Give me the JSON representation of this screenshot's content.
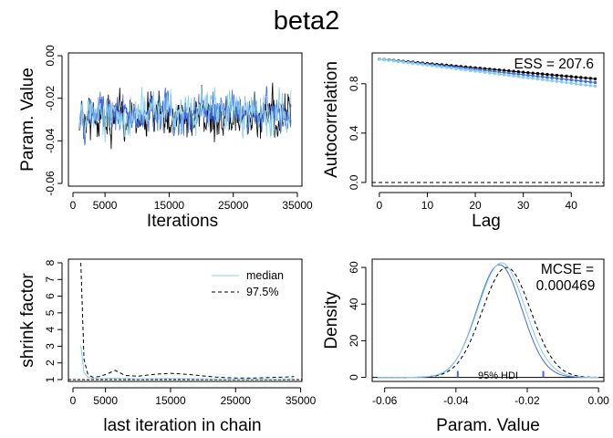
{
  "figure": {
    "title": "beta2"
  },
  "chart_data": [
    {
      "type": "line",
      "panel": "trace",
      "xlabel": "Iterations",
      "ylabel": "Param. Value",
      "xlim": [
        0,
        35000
      ],
      "ylim": [
        -0.06,
        0.0
      ],
      "xticks": [
        0,
        5000,
        15000,
        25000,
        35000
      ],
      "yticks": [
        -0.06,
        -0.04,
        -0.02,
        0.0
      ],
      "xtick_labels": [
        "0",
        "5000",
        "15000",
        "25000",
        "35000"
      ],
      "ytick_labels": [
        "-0.06",
        "-0.04",
        "-0.02",
        "0.00"
      ],
      "series": [
        {
          "color": "#000000",
          "x": [
            1000,
            34000
          ],
          "approx_mean": -0.029,
          "approx_sd": 0.0075
        },
        {
          "color": "#4169e1",
          "x": [
            1000,
            34000
          ],
          "approx_mean": -0.028,
          "approx_sd": 0.0065
        },
        {
          "color": "#87ceeb",
          "x": [
            1000,
            34000
          ],
          "approx_mean": -0.027,
          "approx_sd": 0.007
        }
      ]
    },
    {
      "type": "line",
      "panel": "autocorrelation",
      "xlabel": "Lag",
      "ylabel": "Autocorrelation",
      "annotation": "ESS = 207.6",
      "xlim": [
        0,
        45
      ],
      "ylim": [
        0,
        1.0
      ],
      "xticks": [
        0,
        10,
        20,
        30,
        40
      ],
      "yticks": [
        0.0,
        0.4,
        0.8
      ],
      "xtick_labels": [
        "0",
        "10",
        "20",
        "30",
        "40"
      ],
      "ytick_labels": [
        "0.0",
        "0.4",
        "0.8"
      ],
      "series": [
        {
          "color": "#000000",
          "start": 1.0,
          "end_at_lag_45": 0.84
        },
        {
          "color": "#4169e1",
          "start": 1.0,
          "end_at_lag_45": 0.81
        },
        {
          "color": "#87ceeb",
          "start": 1.0,
          "end_at_lag_45": 0.78
        }
      ]
    },
    {
      "type": "line",
      "panel": "shrink",
      "xlabel": "last iteration in chain",
      "ylabel": "shrink factor",
      "xlim": [
        0,
        34500
      ],
      "ylim": [
        1,
        8
      ],
      "xticks": [
        0,
        5000,
        15000,
        25000,
        35000
      ],
      "yticks": [
        1,
        2,
        3,
        4,
        5,
        6,
        7,
        8
      ],
      "xtick_labels": [
        "0",
        "5000",
        "15000",
        "25000",
        "35000"
      ],
      "ytick_labels": [
        "1",
        "2",
        "3",
        "4",
        "5",
        "6",
        "7",
        "8"
      ],
      "legend": [
        {
          "label": "median",
          "color": "#87ceeb",
          "dash": "solid"
        },
        {
          "label": "97.5%",
          "color": "#000000",
          "dash": "dashed"
        }
      ],
      "series": [
        {
          "name": "median",
          "color": "#87ceeb",
          "x": [
            1200,
            1700,
            2300,
            3000,
            4000,
            6000,
            8000,
            10000,
            15000,
            20000,
            25000,
            30000,
            34000
          ],
          "y": [
            3.05,
            1.4,
            1.15,
            1.08,
            1.05,
            1.08,
            1.06,
            1.04,
            1.06,
            1.04,
            1.03,
            1.03,
            1.04
          ]
        },
        {
          "name": "97.5%",
          "color": "#000000",
          "x": [
            1200,
            1700,
            2300,
            3000,
            4000,
            5000,
            6500,
            8000,
            10000,
            12000,
            15000,
            18000,
            20000,
            22000,
            25000,
            28000,
            30000,
            32000,
            34000
          ],
          "y": [
            8.0,
            2.2,
            1.3,
            1.15,
            1.18,
            1.3,
            1.55,
            1.25,
            1.2,
            1.3,
            1.38,
            1.3,
            1.22,
            1.15,
            1.1,
            1.1,
            1.12,
            1.14,
            1.18
          ]
        }
      ]
    },
    {
      "type": "line",
      "panel": "density",
      "xlabel": "Param. Value",
      "ylabel": "Density",
      "annotation_lines": [
        "MCSE =",
        "0.000469"
      ],
      "hdi_label": "95% HDI",
      "hdi": [
        -0.0395,
        -0.0155
      ],
      "xlim": [
        -0.06,
        0.0
      ],
      "ylim": [
        0,
        62
      ],
      "xticks": [
        -0.06,
        -0.04,
        -0.02,
        0.0
      ],
      "yticks": [
        0,
        20,
        40,
        60
      ],
      "xtick_labels": [
        "-0.06",
        "-0.04",
        "-0.02",
        "0.00"
      ],
      "ytick_labels": [
        "0",
        "20",
        "40",
        "60"
      ],
      "series": [
        {
          "color": "#000000",
          "dash": "dashed",
          "mean": -0.0258,
          "sd": 0.0068,
          "peak": 60.0
        },
        {
          "color": "#4169e1",
          "dash": "solid",
          "mean": -0.0278,
          "sd": 0.0063,
          "peak": 61.5
        },
        {
          "color": "#87ceeb",
          "dash": "solid",
          "mean": -0.0272,
          "sd": 0.0066,
          "peak": 62.5
        }
      ]
    }
  ]
}
